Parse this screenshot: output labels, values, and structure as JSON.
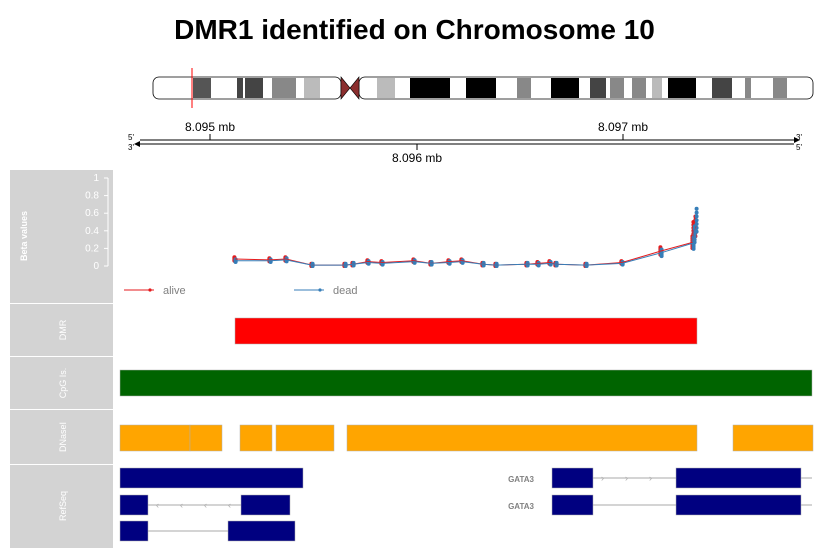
{
  "title": "DMR1 identified on Chromosome 10",
  "colors": {
    "alive": "#e41a1c",
    "dead": "#377eb8",
    "dmr": "#ff0000",
    "cpg": "#006400",
    "dnase": "#ffa500",
    "refseq": "#000080",
    "panel_bg": "#d3d3d3",
    "centromere": "#8b2e2e"
  },
  "axis": {
    "ticks": [
      "8.095 mb",
      "8.096 mb",
      "8.097 mb"
    ],
    "strand_top_left": "5'",
    "strand_bottom_left": "3'",
    "strand_top_right": "3'",
    "strand_bottom_right": "5'"
  },
  "tracks": {
    "beta": {
      "label": "Beta values",
      "yticks": [
        "1",
        "0.8",
        "0.6",
        "0.4",
        "0.2",
        "0"
      ],
      "legend": [
        {
          "name": "alive",
          "color": "#e41a1c"
        },
        {
          "name": "dead",
          "color": "#377eb8"
        }
      ]
    },
    "dmr": {
      "label": "DMR"
    },
    "cpg": {
      "label": "CpG Is."
    },
    "dnase": {
      "label": "DNaseI"
    },
    "refseq": {
      "label": "RefSeq",
      "gene_labels": [
        "GATA3",
        "GATA3"
      ]
    }
  },
  "chart_data": {
    "type": "line",
    "ylabel": "Beta values",
    "ylim": [
      0,
      1
    ],
    "series": [
      {
        "name": "alive",
        "x": [
          1,
          2,
          3,
          4,
          5,
          6,
          7,
          8,
          9,
          10,
          11,
          12,
          13,
          14,
          15,
          16,
          17,
          18,
          19,
          20,
          21,
          22,
          23,
          24
        ],
        "values": [
          0.08,
          0.07,
          0.08,
          0.01,
          0.01,
          0.02,
          0.05,
          0.04,
          0.06,
          0.03,
          0.05,
          0.06,
          0.02,
          0.01,
          0.02,
          0.03,
          0.04,
          0.02,
          0.01,
          0.04,
          0.17,
          0.27,
          0.4,
          0.45
        ]
      },
      {
        "name": "dead",
        "x": [
          1,
          2,
          3,
          4,
          5,
          6,
          7,
          8,
          9,
          10,
          11,
          12,
          13,
          14,
          15,
          16,
          17,
          18,
          19,
          20,
          21,
          22,
          23,
          24
        ],
        "values": [
          0.06,
          0.06,
          0.07,
          0.01,
          0.01,
          0.02,
          0.04,
          0.03,
          0.05,
          0.03,
          0.04,
          0.05,
          0.02,
          0.01,
          0.02,
          0.02,
          0.03,
          0.02,
          0.01,
          0.03,
          0.15,
          0.26,
          0.36,
          0.52
        ]
      }
    ]
  }
}
